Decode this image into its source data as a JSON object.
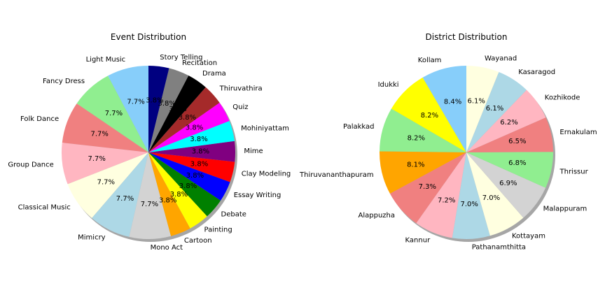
{
  "chart_data": [
    {
      "type": "pie",
      "title": "Event Distribution",
      "start_angle_deg": 90,
      "direction": "counterclockwise",
      "shadow": true,
      "slices": [
        {
          "label": "Light Music",
          "value": 7.7,
          "pct": "7.7%",
          "color": "#87cefa"
        },
        {
          "label": "Fancy Dress",
          "value": 7.7,
          "pct": "7.7%",
          "color": "#90ee90"
        },
        {
          "label": "Folk Dance",
          "value": 7.7,
          "pct": "7.7%",
          "color": "#f08080"
        },
        {
          "label": "Group Dance",
          "value": 7.7,
          "pct": "7.7%",
          "color": "#ffb6c1"
        },
        {
          "label": "Classical Music",
          "value": 7.7,
          "pct": "7.7%",
          "color": "#ffffe0"
        },
        {
          "label": "Mimicry",
          "value": 7.7,
          "pct": "7.7%",
          "color": "#add8e6"
        },
        {
          "label": "Mono Act",
          "value": 7.7,
          "pct": "7.7%",
          "color": "#d3d3d3"
        },
        {
          "label": "Cartoon",
          "value": 3.8,
          "pct": "3.8%",
          "color": "#ffa500"
        },
        {
          "label": "Painting",
          "value": 3.8,
          "pct": "3.8%",
          "color": "#ffff00"
        },
        {
          "label": "Debate",
          "value": 3.8,
          "pct": "3.8%",
          "color": "#008000"
        },
        {
          "label": "Essay Writing",
          "value": 3.8,
          "pct": "3.8%",
          "color": "#0000ff"
        },
        {
          "label": "Clay Modeling",
          "value": 3.8,
          "pct": "3.8%",
          "color": "#ff0000"
        },
        {
          "label": "Mime",
          "value": 3.8,
          "pct": "3.8%",
          "color": "#800080"
        },
        {
          "label": "Mohiniyattam",
          "value": 3.8,
          "pct": "3.8%",
          "color": "#00ffff"
        },
        {
          "label": "Quiz",
          "value": 3.8,
          "pct": "3.8%",
          "color": "#ff00ff"
        },
        {
          "label": "Thiruvathira",
          "value": 3.8,
          "pct": "3.8%",
          "color": "#a52a2a"
        },
        {
          "label": "Drama",
          "value": 3.8,
          "pct": "3.8%",
          "color": "#000000"
        },
        {
          "label": "Recitation",
          "value": 3.8,
          "pct": "3.8%",
          "color": "#808080"
        },
        {
          "label": "Story Telling",
          "value": 3.8,
          "pct": "3.8%",
          "color": "#000080"
        }
      ]
    },
    {
      "type": "pie",
      "title": "District Distribution",
      "start_angle_deg": 90,
      "direction": "counterclockwise",
      "shadow": true,
      "slices": [
        {
          "label": "Kollam",
          "value": 8.4,
          "pct": "8.4%",
          "color": "#87cefa"
        },
        {
          "label": "Idukki",
          "value": 8.2,
          "pct": "8.2%",
          "color": "#ffff00"
        },
        {
          "label": "Palakkad",
          "value": 8.2,
          "pct": "8.2%",
          "color": "#90ee90"
        },
        {
          "label": "Thiruvananthapuram",
          "value": 8.1,
          "pct": "8.1%",
          "color": "#ffa500"
        },
        {
          "label": "Alappuzha",
          "value": 7.3,
          "pct": "7.3%",
          "color": "#f08080"
        },
        {
          "label": "Kannur",
          "value": 7.2,
          "pct": "7.2%",
          "color": "#ffb6c1"
        },
        {
          "label": "Pathanamthitta",
          "value": 7.0,
          "pct": "7.0%",
          "color": "#add8e6"
        },
        {
          "label": "Kottayam",
          "value": 7.0,
          "pct": "7.0%",
          "color": "#ffffe0"
        },
        {
          "label": "Malappuram",
          "value": 6.9,
          "pct": "6.9%",
          "color": "#d3d3d3"
        },
        {
          "label": "Thrissur",
          "value": 6.8,
          "pct": "6.8%",
          "color": "#90ee90"
        },
        {
          "label": "Ernakulam",
          "value": 6.5,
          "pct": "6.5%",
          "color": "#f08080"
        },
        {
          "label": "Kozhikode",
          "value": 6.2,
          "pct": "6.2%",
          "color": "#ffb6c1"
        },
        {
          "label": "Kasaragod",
          "value": 6.1,
          "pct": "6.1%",
          "color": "#add8e6"
        },
        {
          "label": "Wayanad",
          "value": 6.1,
          "pct": "6.1%",
          "color": "#ffffe0"
        }
      ]
    }
  ]
}
